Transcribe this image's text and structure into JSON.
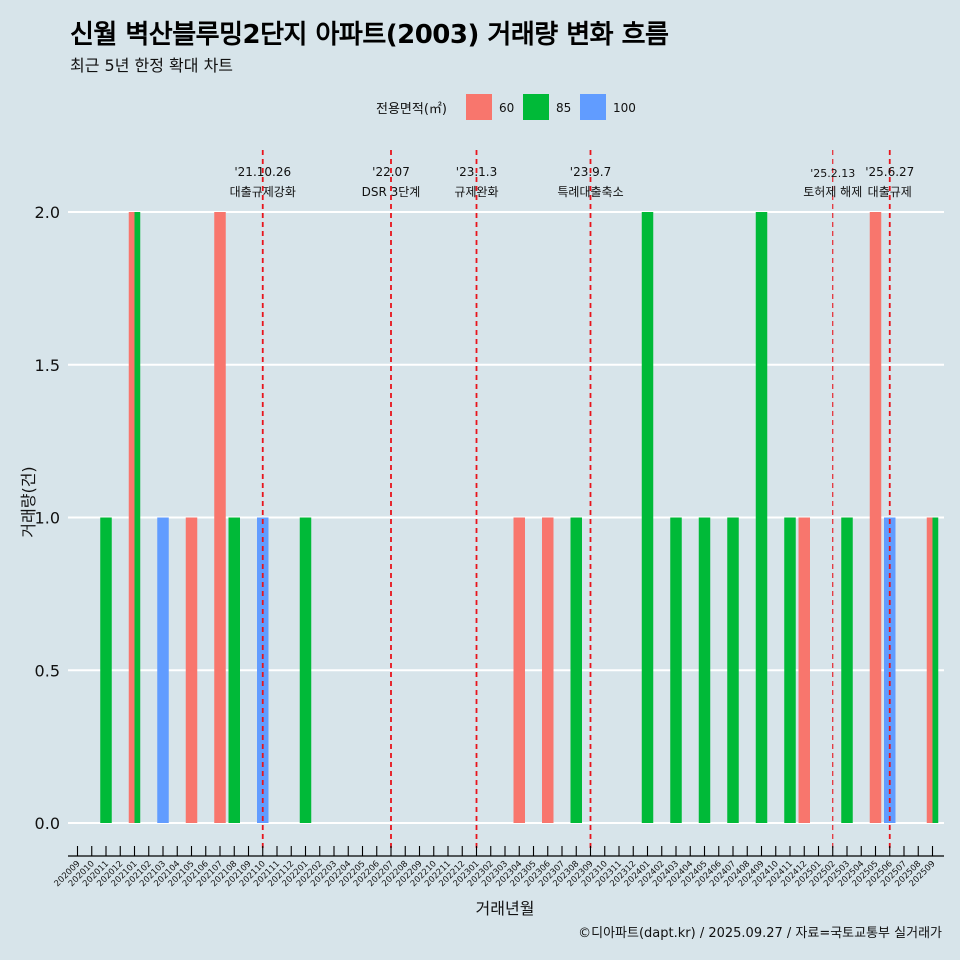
{
  "chart_data": {
    "type": "bar",
    "title": "신월 벽산블루밍2단지 아파트(2003) 거래량 변화 흐름",
    "subtitle": "최근 5년 한정 확대 차트",
    "xlabel": "거래년월",
    "ylabel": "거래량(건)",
    "caption": "©디아파트(dapt.kr) / 2025.09.27 / 자료=국토교통부 실거래가",
    "legend": {
      "title": "전용면적(㎡)",
      "position": "top"
    },
    "ylim": [
      0,
      2
    ],
    "y_ticks": [
      "0.0",
      "0.5",
      "1.0",
      "1.5",
      "2.0"
    ],
    "categories": [
      "202009",
      "202010",
      "202011",
      "202012",
      "202101",
      "202102",
      "202103",
      "202104",
      "202105",
      "202106",
      "202107",
      "202108",
      "202109",
      "202110",
      "202111",
      "202112",
      "202201",
      "202202",
      "202203",
      "202204",
      "202205",
      "202206",
      "202207",
      "202208",
      "202209",
      "202210",
      "202211",
      "202212",
      "202301",
      "202302",
      "202303",
      "202304",
      "202305",
      "202306",
      "202307",
      "202308",
      "202309",
      "202310",
      "202311",
      "202312",
      "202401",
      "202402",
      "202403",
      "202404",
      "202405",
      "202406",
      "202407",
      "202408",
      "202409",
      "202410",
      "202411",
      "202412",
      "202501",
      "202502",
      "202503",
      "202504",
      "202505",
      "202506",
      "202507",
      "202508",
      "202509"
    ],
    "series": [
      {
        "name": "60",
        "color": "#f8766d",
        "values": [
          0,
          0,
          0,
          0,
          2,
          0,
          0,
          0,
          1,
          0,
          2,
          0,
          0,
          0,
          0,
          0,
          0,
          0,
          0,
          0,
          0,
          0,
          0,
          0,
          0,
          0,
          0,
          0,
          0,
          0,
          0,
          1,
          0,
          1,
          0,
          0,
          0,
          0,
          0,
          0,
          0,
          0,
          0,
          0,
          0,
          0,
          0,
          0,
          0,
          0,
          0,
          1,
          0,
          0,
          0,
          0,
          2,
          0,
          0,
          0,
          1
        ]
      },
      {
        "name": "85",
        "color": "#00ba38",
        "values": [
          0,
          0,
          1,
          0,
          2,
          0,
          0,
          0,
          0,
          0,
          0,
          1,
          0,
          0,
          0,
          0,
          1,
          0,
          0,
          0,
          0,
          0,
          0,
          0,
          0,
          0,
          0,
          0,
          0,
          0,
          0,
          0,
          0,
          0,
          0,
          1,
          0,
          0,
          0,
          0,
          2,
          0,
          1,
          0,
          1,
          0,
          1,
          0,
          2,
          0,
          1,
          0,
          0,
          0,
          1,
          0,
          0,
          0,
          0,
          0,
          1
        ]
      },
      {
        "name": "100",
        "color": "#619cff",
        "values": [
          0,
          0,
          0,
          0,
          0,
          0,
          1,
          0,
          0,
          0,
          0,
          0,
          0,
          1,
          0,
          0,
          0,
          0,
          0,
          0,
          0,
          0,
          0,
          0,
          0,
          0,
          0,
          0,
          0,
          0,
          0,
          0,
          0,
          0,
          0,
          0,
          0,
          0,
          0,
          0,
          0,
          0,
          0,
          0,
          0,
          0,
          0,
          0,
          0,
          0,
          0,
          0,
          0,
          0,
          0,
          0,
          0,
          1,
          0,
          0,
          0
        ]
      }
    ],
    "annotations": [
      {
        "x": "202110",
        "date": "'21.10.26",
        "label": "대출규제강화",
        "line": "thick"
      },
      {
        "x": "202207",
        "date": "'22.07",
        "label": "DSR 3단계",
        "line": "thick"
      },
      {
        "x": "202301",
        "date": "'23.1.3",
        "label": "규제완화",
        "line": "thick"
      },
      {
        "x": "202309",
        "date": "'23.9.7",
        "label": "특례대출축소",
        "line": "thick"
      },
      {
        "x": "202502",
        "date": "'25.2.13",
        "label": "토허제 해제",
        "line": "thin"
      },
      {
        "x": "202506",
        "date": "'25.6.27",
        "label": "대출규제",
        "line": "thick"
      }
    ]
  }
}
